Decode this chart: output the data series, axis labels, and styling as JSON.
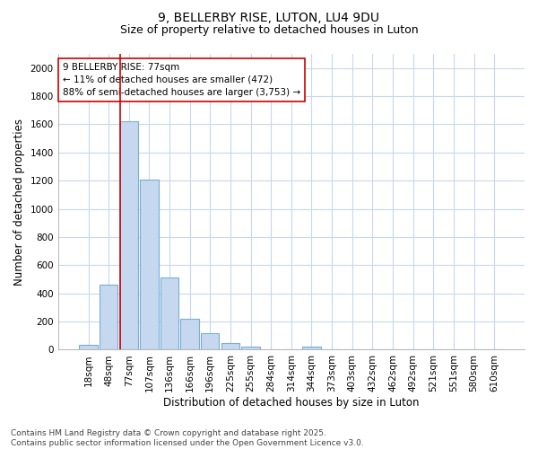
{
  "title": "9, BELLERBY RISE, LUTON, LU4 9DU",
  "subtitle": "Size of property relative to detached houses in Luton",
  "xlabel": "Distribution of detached houses by size in Luton",
  "ylabel": "Number of detached properties",
  "categories": [
    "18sqm",
    "48sqm",
    "77sqm",
    "107sqm",
    "136sqm",
    "166sqm",
    "196sqm",
    "225sqm",
    "255sqm",
    "284sqm",
    "314sqm",
    "344sqm",
    "373sqm",
    "403sqm",
    "432sqm",
    "462sqm",
    "492sqm",
    "521sqm",
    "551sqm",
    "580sqm",
    "610sqm"
  ],
  "values": [
    35,
    460,
    1625,
    1210,
    510,
    220,
    115,
    45,
    25,
    0,
    0,
    20,
    0,
    0,
    0,
    0,
    0,
    0,
    0,
    0,
    0
  ],
  "bar_color": "#c5d8f0",
  "bar_edge_color": "#7aafd4",
  "vline_x_index": 2,
  "vline_color": "#cc0000",
  "annotation_text": "9 BELLERBY RISE: 77sqm\n← 11% of detached houses are smaller (472)\n88% of semi-detached houses are larger (3,753) →",
  "annotation_box_color": "#ffffff",
  "annotation_box_edge_color": "#cc0000",
  "ylim": [
    0,
    2100
  ],
  "yticks": [
    0,
    200,
    400,
    600,
    800,
    1000,
    1200,
    1400,
    1600,
    1800,
    2000
  ],
  "footnote": "Contains HM Land Registry data © Crown copyright and database right 2025.\nContains public sector information licensed under the Open Government Licence v3.0.",
  "background_color": "#ffffff",
  "plot_bg_color": "#ffffff",
  "grid_color": "#c8d8ec",
  "title_fontsize": 10,
  "subtitle_fontsize": 9,
  "axis_label_fontsize": 8.5,
  "tick_fontsize": 7.5,
  "annotation_fontsize": 7.5,
  "footnote_fontsize": 6.5
}
